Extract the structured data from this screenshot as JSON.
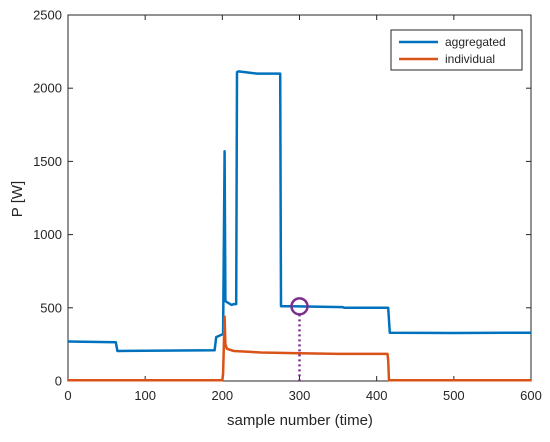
{
  "chart_data": {
    "type": "line",
    "xlabel": "sample number (time)",
    "ylabel": "P [W]",
    "xlim": [
      0,
      600
    ],
    "ylim": [
      0,
      2500
    ],
    "xticks": [
      "0",
      "100",
      "200",
      "300",
      "400",
      "500",
      "600"
    ],
    "yticks": [
      "0",
      "500",
      "1000",
      "1500",
      "2000",
      "2500"
    ],
    "grid": false,
    "legend_position": "top-right",
    "series": [
      {
        "name": "aggregated",
        "color": "#0072BD",
        "points": [
          [
            0,
            270
          ],
          [
            62,
            265
          ],
          [
            64,
            205
          ],
          [
            190,
            210
          ],
          [
            192,
            300
          ],
          [
            200,
            318
          ],
          [
            201,
            320
          ],
          [
            203,
            1570
          ],
          [
            204,
            545
          ],
          [
            212,
            520
          ],
          [
            215,
            525
          ],
          [
            218,
            525
          ],
          [
            219,
            2110
          ],
          [
            221,
            2115
          ],
          [
            245,
            2100
          ],
          [
            275,
            2100
          ],
          [
            276,
            510
          ],
          [
            290,
            510
          ],
          [
            356,
            505
          ],
          [
            358,
            500
          ],
          [
            415,
            500
          ],
          [
            417,
            330
          ],
          [
            500,
            328
          ],
          [
            600,
            330
          ]
        ]
      },
      {
        "name": "individual",
        "color": "#D95319",
        "points": [
          [
            0,
            5
          ],
          [
            200,
            5
          ],
          [
            201,
            50
          ],
          [
            203,
            440
          ],
          [
            204,
            250
          ],
          [
            206,
            220
          ],
          [
            215,
            205
          ],
          [
            250,
            195
          ],
          [
            300,
            190
          ],
          [
            350,
            185
          ],
          [
            414,
            185
          ],
          [
            415,
            140
          ],
          [
            416,
            5
          ],
          [
            600,
            5
          ]
        ]
      }
    ],
    "marker": {
      "type": "circle",
      "x": 300,
      "y": 510,
      "color": "#7E2F8E",
      "dashed_line_to_axis": true
    }
  }
}
